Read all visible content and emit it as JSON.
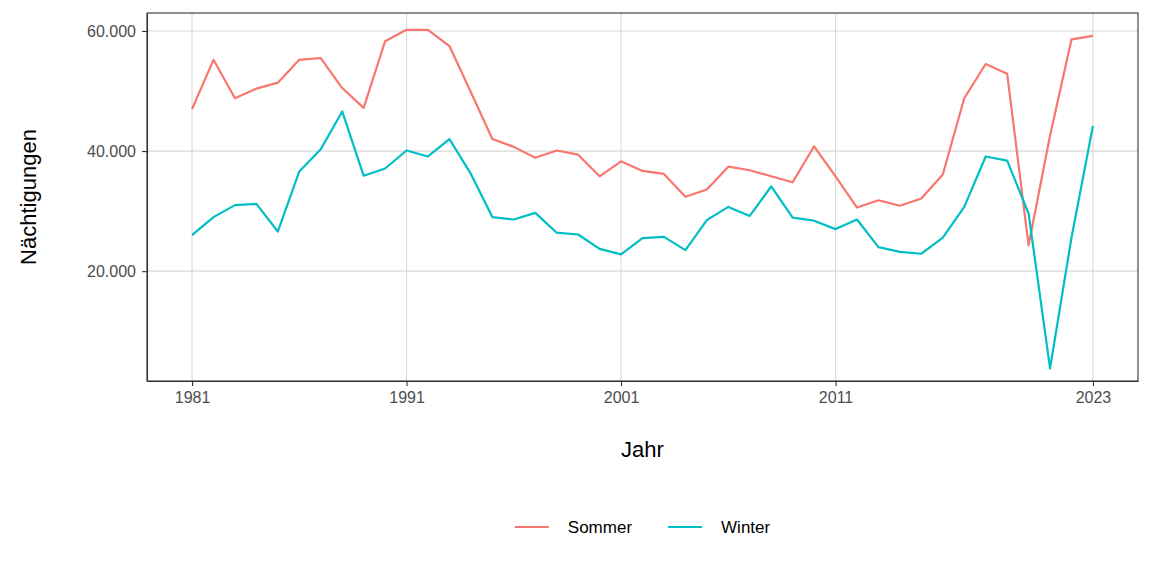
{
  "chart_data": {
    "type": "line",
    "x_label": "Jahr",
    "y_label": "Nächtigungen",
    "x": [
      1981,
      1982,
      1983,
      1984,
      1985,
      1986,
      1987,
      1988,
      1989,
      1990,
      1991,
      1992,
      1993,
      1994,
      1995,
      1996,
      1997,
      1998,
      1999,
      2000,
      2001,
      2002,
      2003,
      2004,
      2005,
      2006,
      2007,
      2008,
      2009,
      2010,
      2011,
      2012,
      2013,
      2014,
      2015,
      2016,
      2017,
      2018,
      2019,
      2020,
      2021,
      2022,
      2023
    ],
    "series": [
      {
        "name": "Sommer",
        "color": "#F8766D",
        "values": [
          47000,
          55200,
          48800,
          50400,
          51400,
          55200,
          55500,
          50500,
          47200,
          58300,
          60200,
          60200,
          57500,
          49800,
          42000,
          40700,
          38900,
          40100,
          39400,
          35800,
          38300,
          36700,
          36200,
          32400,
          33600,
          37400,
          36800,
          35800,
          34800,
          40800,
          35800,
          30600,
          31800,
          30900,
          32100,
          36100,
          48800,
          54500,
          52900,
          24300,
          42600,
          58600,
          59200
        ]
      },
      {
        "name": "Winter",
        "color": "#00BFC4",
        "values": [
          26000,
          29000,
          31000,
          31200,
          26600,
          36600,
          40300,
          46600,
          35900,
          37100,
          40100,
          39100,
          42000,
          36200,
          29000,
          28600,
          29700,
          26400,
          26100,
          23700,
          22800,
          25500,
          25700,
          23500,
          28500,
          30700,
          29200,
          34100,
          28900,
          28400,
          27000,
          28600,
          24000,
          23200,
          22900,
          25600,
          30700,
          39100,
          38400,
          29600,
          3800,
          25600,
          44200
        ]
      }
    ],
    "xlim": [
      1978.9,
      2025.1
    ],
    "xticks": [
      1981,
      1991,
      2001,
      2011,
      2023
    ],
    "ylim": [
      1700,
      63000
    ],
    "yticks": [
      {
        "value": 20000,
        "label": "20.000"
      },
      {
        "value": 40000,
        "label": "40.000"
      },
      {
        "value": 60000,
        "label": "60.000"
      }
    ],
    "grid": true,
    "legend": "bottom"
  }
}
